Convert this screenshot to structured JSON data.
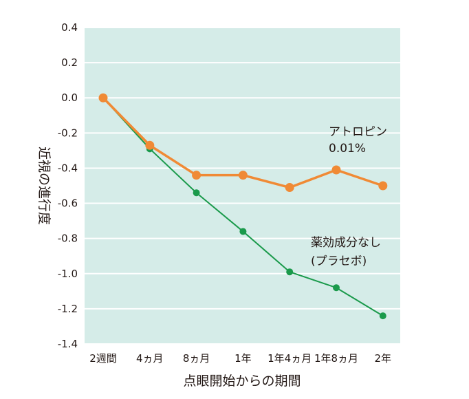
{
  "chart_data": {
    "type": "line",
    "title": "",
    "xlabel": "点眼開始からの期間",
    "ylabel": "近視の進行度",
    "categories": [
      "2週間",
      "4ヵ月",
      "8ヵ月",
      "1年",
      "1年4ヵ月",
      "1年8ヵ月",
      "2年"
    ],
    "ylim": [
      -1.4,
      0.4
    ],
    "yticks": [
      "0.4",
      "0.2",
      "0.0",
      "-0.2",
      "-0.4",
      "-0.6",
      "-0.8",
      "-1.0",
      "-1.2",
      "-1.4"
    ],
    "ytick_values": [
      0.4,
      0.2,
      0.0,
      -0.2,
      -0.4,
      -0.6,
      -0.8,
      -1.0,
      -1.2,
      -1.4
    ],
    "grid": true,
    "legend": "none",
    "series": [
      {
        "name": "アトロピン 0.01%",
        "label_lines": [
          "アトロピン",
          "0.01%"
        ],
        "color": "#f08a35",
        "values": [
          0.0,
          -0.27,
          -0.44,
          -0.44,
          -0.51,
          -0.41,
          -0.5
        ]
      },
      {
        "name": "薬効成分なし (プラセボ)",
        "label_lines": [
          "薬効成分なし",
          "(プラセボ)"
        ],
        "color": "#1a9a4b",
        "values": [
          0.0,
          -0.29,
          -0.54,
          -0.76,
          -0.99,
          -1.08,
          -1.24
        ]
      }
    ]
  },
  "colors": {
    "plot_background": "#d5ece8",
    "gridline": "#ffffff",
    "text": "#231815"
  }
}
